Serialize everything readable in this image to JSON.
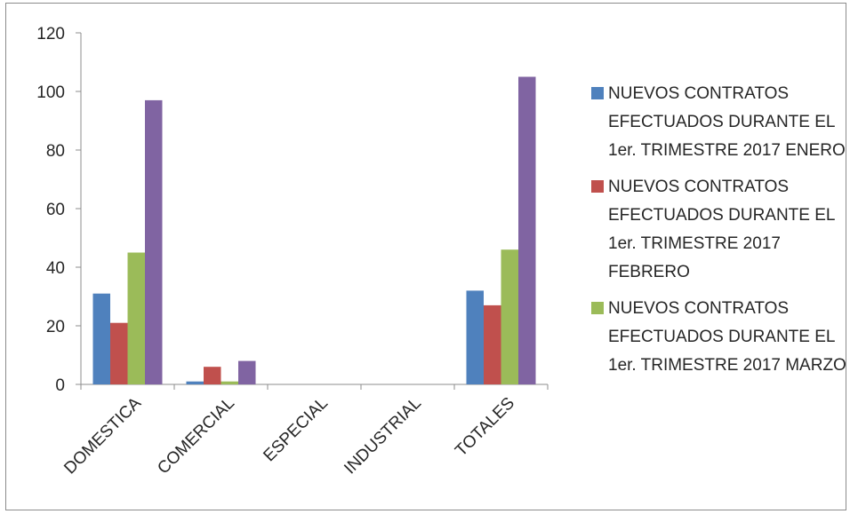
{
  "chart_data": {
    "type": "bar",
    "categories": [
      "DOMESTICA",
      "COMERCIAL",
      "ESPECIAL",
      "INDUSTRIAL",
      "TOTALES"
    ],
    "series": [
      {
        "name": "NUEVOS CONTRATOS EFECTUADOS DURANTE EL 1er. TRIMESTRE 2017 ENERO",
        "color": "#4f81bd",
        "values": [
          31,
          1,
          0,
          0,
          32
        ]
      },
      {
        "name": "NUEVOS CONTRATOS EFECTUADOS DURANTE EL 1er. TRIMESTRE 2017 FEBRERO",
        "color": "#c0504d",
        "values": [
          21,
          6,
          0,
          0,
          27
        ]
      },
      {
        "name": "NUEVOS CONTRATOS EFECTUADOS DURANTE EL 1er. TRIMESTRE 2017 MARZO",
        "color": "#9bbb59",
        "values": [
          45,
          1,
          0,
          0,
          46
        ]
      },
      {
        "name": "",
        "color": "#8064a2",
        "values": [
          97,
          8,
          0,
          0,
          105
        ]
      }
    ],
    "ylim": [
      0,
      120
    ],
    "yticks": [
      0,
      20,
      40,
      60,
      80,
      100,
      120
    ],
    "grid": false,
    "legend_position": "right"
  }
}
